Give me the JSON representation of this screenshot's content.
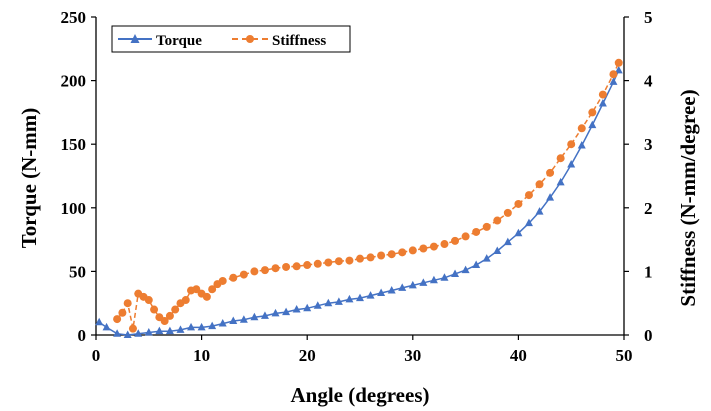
{
  "chart_data": {
    "type": "line",
    "xlabel": "Angle (degrees)",
    "ylabel": "Torque (N-mm)",
    "y2label": "Stiffness (N-mm/degree)",
    "xlim": [
      0,
      50
    ],
    "ylim": [
      0,
      250
    ],
    "y2lim": [
      0,
      5
    ],
    "xticks": [
      0,
      10,
      20,
      30,
      40,
      50
    ],
    "yticks": [
      0,
      50,
      100,
      150,
      200,
      250
    ],
    "y2ticks": [
      0,
      1,
      2,
      3,
      4,
      5
    ],
    "grid": false,
    "legend_position": "top-left",
    "series": [
      {
        "name": "Torque",
        "axis": "left",
        "color": "#4472C4",
        "marker": "triangle",
        "line_style": "solid",
        "x": [
          0.3,
          1,
          2,
          3,
          4,
          5,
          6,
          7,
          8,
          9,
          10,
          11,
          12,
          13,
          14,
          15,
          16,
          17,
          18,
          19,
          20,
          21,
          22,
          23,
          24,
          25,
          26,
          27,
          28,
          29,
          30,
          31,
          32,
          33,
          34,
          35,
          36,
          37,
          38,
          39,
          40,
          41,
          42,
          43,
          44,
          45,
          46,
          47,
          48,
          49,
          49.5
        ],
        "y": [
          10,
          6,
          1,
          0,
          1,
          2,
          3,
          3,
          4,
          6,
          6,
          7,
          9,
          11,
          12,
          14,
          15,
          17,
          18,
          20,
          21,
          23,
          25,
          26,
          28,
          29,
          31,
          33,
          35,
          37,
          39,
          41,
          43,
          45,
          48,
          51,
          55,
          60,
          66,
          73,
          80,
          88,
          97,
          108,
          120,
          134,
          149,
          165,
          182,
          199,
          208
        ]
      },
      {
        "name": "Stiffness",
        "axis": "right",
        "color": "#ED7D31",
        "marker": "circle",
        "line_style": "dashed",
        "x": [
          2,
          2.5,
          3,
          3.5,
          4,
          4.5,
          5,
          5.5,
          6,
          6.5,
          7,
          7.5,
          8,
          8.5,
          9,
          9.5,
          10,
          10.5,
          11,
          11.5,
          12,
          13,
          14,
          15,
          16,
          17,
          18,
          19,
          20,
          21,
          22,
          23,
          24,
          25,
          26,
          27,
          28,
          29,
          30,
          31,
          32,
          33,
          34,
          35,
          36,
          37,
          38,
          39,
          40,
          41,
          42,
          43,
          44,
          45,
          46,
          47,
          48,
          49,
          49.5
        ],
        "y": [
          0.25,
          0.35,
          0.5,
          0.1,
          0.65,
          0.6,
          0.55,
          0.4,
          0.28,
          0.22,
          0.3,
          0.4,
          0.5,
          0.55,
          0.7,
          0.72,
          0.65,
          0.6,
          0.72,
          0.8,
          0.85,
          0.9,
          0.95,
          1.0,
          1.02,
          1.05,
          1.07,
          1.08,
          1.1,
          1.12,
          1.14,
          1.16,
          1.17,
          1.2,
          1.22,
          1.25,
          1.27,
          1.3,
          1.33,
          1.36,
          1.39,
          1.43,
          1.48,
          1.55,
          1.62,
          1.7,
          1.8,
          1.92,
          2.06,
          2.2,
          2.37,
          2.55,
          2.78,
          3.0,
          3.25,
          3.5,
          3.78,
          4.1,
          4.28
        ]
      }
    ]
  }
}
